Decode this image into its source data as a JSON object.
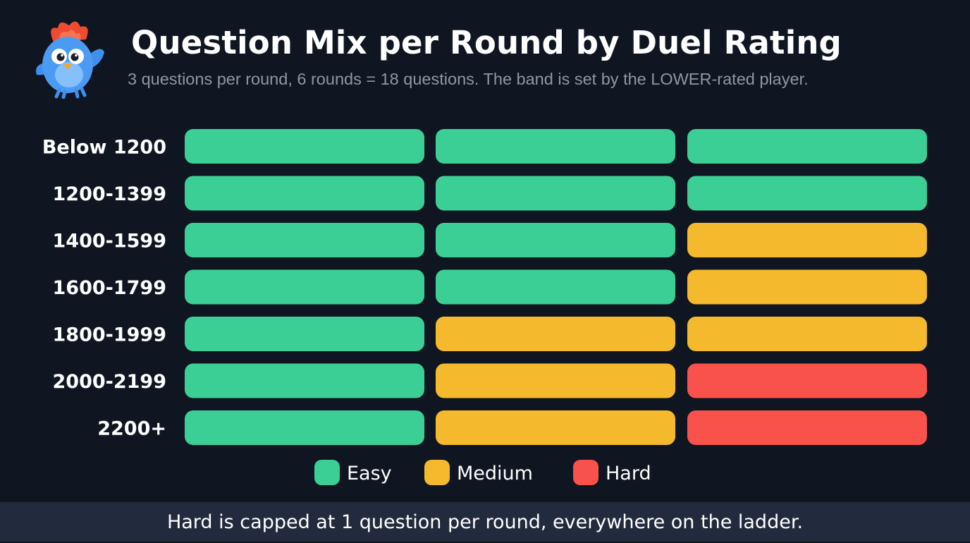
{
  "title": "Question Mix per Round by Duel Rating",
  "subtitle": "3 questions per round, 6 rounds = 18 questions. The band is set by the LOWER-rated player.",
  "footer": "Hard is capped at 1 question per round, everywhere on the ladder.",
  "mascot": {
    "icon": "bird-mascot-icon"
  },
  "colors": {
    "background": "#0f1621",
    "footer_background": "#222b3d",
    "Easy": "#3ccf95",
    "Medium": "#f4b92c",
    "Hard": "#f9524a"
  },
  "chart_data": {
    "type": "table",
    "categories": [
      "Below 1200",
      "1200-1399",
      "1400-1599",
      "1600-1799",
      "1800-1999",
      "2000-2199",
      "2200+"
    ],
    "rows": [
      [
        "Easy",
        "Easy",
        "Easy"
      ],
      [
        "Easy",
        "Easy",
        "Easy"
      ],
      [
        "Easy",
        "Easy",
        "Medium"
      ],
      [
        "Easy",
        "Easy",
        "Medium"
      ],
      [
        "Easy",
        "Medium",
        "Medium"
      ],
      [
        "Easy",
        "Medium",
        "Hard"
      ],
      [
        "Easy",
        "Medium",
        "Hard"
      ]
    ],
    "legend": [
      "Easy",
      "Medium",
      "Hard"
    ],
    "legend_position": "bottom-center"
  }
}
